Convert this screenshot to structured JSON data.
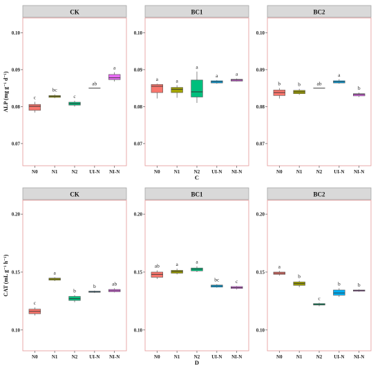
{
  "chart_data": [
    {
      "type": "box",
      "panel": "CK",
      "title": "CK",
      "ylabel": "ALP (mg g⁻¹ d⁻¹)",
      "ylim": [
        0.064,
        0.104
      ],
      "yticks": [
        0.07,
        0.08,
        0.09,
        0.1
      ],
      "ytick_labels": [
        "0.07",
        "0.08",
        "0.09",
        "0.10"
      ],
      "categories": [
        "N0",
        "N1",
        "N2",
        "UI-N",
        "NI-N"
      ],
      "colors": [
        "#F8766D",
        "#A3A500",
        "#00BF7D",
        "#00B0F6",
        "#E76BF3"
      ],
      "boxes": [
        {
          "min": 0.0784,
          "q1": 0.079,
          "median": 0.0801,
          "q3": 0.0806,
          "max": 0.0813
        },
        {
          "min": 0.0823,
          "q1": 0.0825,
          "median": 0.0828,
          "q3": 0.083,
          "max": 0.0833
        },
        {
          "min": 0.08,
          "q1": 0.0804,
          "median": 0.0808,
          "q3": 0.0812,
          "max": 0.0816
        },
        {
          "min": 0.085,
          "q1": 0.085,
          "median": 0.085,
          "q3": 0.085,
          "max": 0.085
        },
        {
          "min": 0.0868,
          "q1": 0.0873,
          "median": 0.0878,
          "q3": 0.0887,
          "max": 0.0893
        }
      ],
      "letters": [
        "c",
        "bc",
        "c",
        "ab",
        "a"
      ]
    },
    {
      "type": "box",
      "panel": "BC1",
      "title": "BC1",
      "ylim": [
        0.064,
        0.104
      ],
      "yticks": [
        0.07,
        0.08,
        0.09,
        0.1
      ],
      "ytick_labels": [
        "0.07",
        "0.08",
        "0.09",
        "0.10"
      ],
      "categories": [
        "N0",
        "N1",
        "N2",
        "UI-N",
        "NI-N"
      ],
      "colors": [
        "#F8766D",
        "#A3A500",
        "#00BF7D",
        "#00B0F6",
        "#E76BF3"
      ],
      "boxes": [
        {
          "min": 0.0822,
          "q1": 0.0838,
          "median": 0.0855,
          "q3": 0.086,
          "max": 0.0862
        },
        {
          "min": 0.0824,
          "q1": 0.0838,
          "median": 0.0847,
          "q3": 0.0852,
          "max": 0.0858
        },
        {
          "min": 0.081,
          "q1": 0.0826,
          "median": 0.084,
          "q3": 0.0872,
          "max": 0.0895
        },
        {
          "min": 0.0862,
          "q1": 0.0864,
          "median": 0.0867,
          "q3": 0.087,
          "max": 0.0872
        },
        {
          "min": 0.0868,
          "q1": 0.0869,
          "median": 0.0872,
          "q3": 0.0874,
          "max": 0.0876
        }
      ],
      "letters": [
        "a",
        "a",
        "a",
        "a",
        "a"
      ]
    },
    {
      "type": "box",
      "panel": "BC2",
      "title": "BC2",
      "xlabel": "C",
      "ylim": [
        0.064,
        0.104
      ],
      "yticks": [
        0.07,
        0.08,
        0.09,
        0.1
      ],
      "ytick_labels": [
        "0.07",
        "0.08",
        "0.09",
        "0.10"
      ],
      "categories": [
        "N0",
        "N1",
        "N2",
        "UI-N",
        "NI-N"
      ],
      "colors": [
        "#F8766D",
        "#A3A500",
        "#00BF7D",
        "#00B0F6",
        "#E76BF3"
      ],
      "boxes": [
        {
          "min": 0.0822,
          "q1": 0.083,
          "median": 0.0838,
          "q3": 0.0845,
          "max": 0.085
        },
        {
          "min": 0.0832,
          "q1": 0.0835,
          "median": 0.084,
          "q3": 0.0844,
          "max": 0.0848
        },
        {
          "min": 0.085,
          "q1": 0.085,
          "median": 0.085,
          "q3": 0.085,
          "max": 0.085
        },
        {
          "min": 0.0862,
          "q1": 0.0864,
          "median": 0.0867,
          "q3": 0.087,
          "max": 0.0874
        },
        {
          "min": 0.0826,
          "q1": 0.0829,
          "median": 0.0833,
          "q3": 0.0835,
          "max": 0.0838
        }
      ],
      "letters": [
        "b",
        "b",
        "ab",
        "a",
        "b"
      ]
    },
    {
      "type": "box",
      "panel": "CK",
      "title": "CK",
      "ylabel": "CAT (mL g⁻¹ h⁻¹)",
      "ylim": [
        0.082,
        0.212
      ],
      "yticks": [
        0.1,
        0.15,
        0.2
      ],
      "ytick_labels": [
        "0.10",
        "0.15",
        "0.20"
      ],
      "categories": [
        "N0",
        "N1",
        "N2",
        "UI-N",
        "NI-N"
      ],
      "colors": [
        "#F8766D",
        "#A3A500",
        "#00BF7D",
        "#00B0F6",
        "#E76BF3"
      ],
      "boxes": [
        {
          "min": 0.1125,
          "q1": 0.114,
          "median": 0.116,
          "q3": 0.118,
          "max": 0.1195
        },
        {
          "min": 0.1422,
          "q1": 0.143,
          "median": 0.144,
          "q3": 0.1448,
          "max": 0.1455
        },
        {
          "min": 0.124,
          "q1": 0.1255,
          "median": 0.127,
          "q3": 0.129,
          "max": 0.13
        },
        {
          "min": 0.132,
          "q1": 0.1325,
          "median": 0.133,
          "q3": 0.1335,
          "max": 0.134
        },
        {
          "min": 0.1325,
          "q1": 0.133,
          "median": 0.134,
          "q3": 0.135,
          "max": 0.136
        }
      ],
      "letters": [
        "c",
        "a",
        "b",
        "b",
        "ab"
      ]
    },
    {
      "type": "box",
      "panel": "BC1",
      "title": "BC1",
      "ylim": [
        0.082,
        0.212
      ],
      "yticks": [
        0.1,
        0.15,
        0.2
      ],
      "ytick_labels": [
        "0.10",
        "0.15",
        "0.20"
      ],
      "categories": [
        "N0",
        "N1",
        "N2",
        "UI-N",
        "NI-N"
      ],
      "colors": [
        "#F8766D",
        "#A3A500",
        "#00BF7D",
        "#00B0F6",
        "#E76BF3"
      ],
      "boxes": [
        {
          "min": 0.144,
          "q1": 0.1455,
          "median": 0.148,
          "q3": 0.15,
          "max": 0.1515
        },
        {
          "min": 0.148,
          "q1": 0.149,
          "median": 0.1505,
          "q3": 0.1515,
          "max": 0.153
        },
        {
          "min": 0.15,
          "q1": 0.151,
          "median": 0.1525,
          "q3": 0.1535,
          "max": 0.155
        },
        {
          "min": 0.1365,
          "q1": 0.137,
          "median": 0.138,
          "q3": 0.1388,
          "max": 0.1395
        },
        {
          "min": 0.135,
          "q1": 0.1358,
          "median": 0.1365,
          "q3": 0.1375,
          "max": 0.138
        }
      ],
      "letters": [
        "ab",
        "a",
        "a",
        "bc",
        "c"
      ]
    },
    {
      "type": "box",
      "panel": "BC2",
      "title": "BC2",
      "xlabel": "D",
      "ylim": [
        0.082,
        0.212
      ],
      "yticks": [
        0.1,
        0.15,
        0.2
      ],
      "ytick_labels": [
        "0.10",
        "0.15",
        "0.20"
      ],
      "categories": [
        "N0",
        "N1",
        "N2",
        "UI-N",
        "NI-N"
      ],
      "colors": [
        "#F8766D",
        "#A3A500",
        "#00BF7D",
        "#00B0F6",
        "#E76BF3"
      ],
      "boxes": [
        {
          "min": 0.147,
          "q1": 0.148,
          "median": 0.149,
          "q3": 0.15,
          "max": 0.151
        },
        {
          "min": 0.137,
          "q1": 0.1385,
          "median": 0.14,
          "q3": 0.1415,
          "max": 0.1425
        },
        {
          "min": 0.1205,
          "q1": 0.1215,
          "median": 0.122,
          "q3": 0.1228,
          "max": 0.1235
        },
        {
          "min": 0.1285,
          "q1": 0.13,
          "median": 0.132,
          "q3": 0.1345,
          "max": 0.136
        },
        {
          "min": 0.133,
          "q1": 0.1335,
          "median": 0.134,
          "q3": 0.1345,
          "max": 0.135
        }
      ],
      "letters": [
        "a",
        "b",
        "c",
        "b",
        "b"
      ]
    }
  ]
}
